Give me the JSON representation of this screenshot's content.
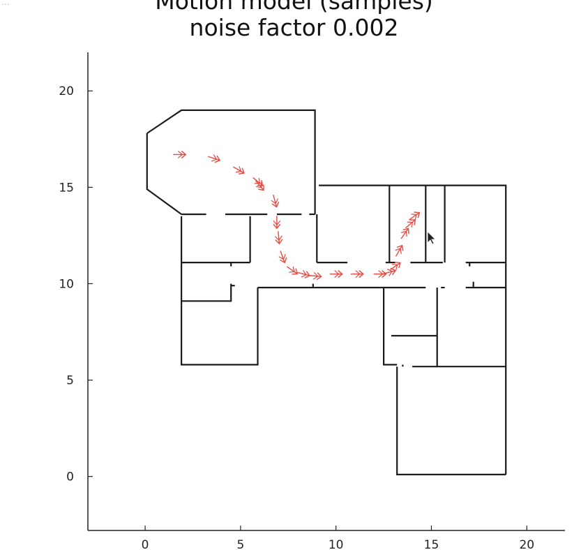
{
  "corner_mark": "...",
  "chart_data": {
    "type": "map",
    "title_lines": [
      "Motion model (samples)",
      "noise factor 0.002"
    ],
    "xlim": [
      -3,
      22
    ],
    "ylim": [
      -2.8,
      22
    ],
    "xticks": [
      0,
      5,
      10,
      15,
      20
    ],
    "yticks": [
      0,
      5,
      10,
      15,
      20
    ],
    "grid": false,
    "line_color": "#1a1a1a",
    "sample_color": "#e8473f",
    "walls": [
      [
        [
          0.1,
          17.8
        ],
        [
          1.9,
          19.0
        ],
        [
          8.9,
          19.0
        ],
        [
          8.9,
          13.6
        ]
      ],
      [
        [
          0.1,
          17.8
        ],
        [
          0.1,
          14.9
        ],
        [
          1.9,
          13.6
        ]
      ],
      [
        [
          1.9,
          13.6
        ],
        [
          3.2,
          13.6
        ]
      ],
      [
        [
          4.2,
          13.6
        ],
        [
          6.4,
          13.6
        ]
      ],
      [
        [
          6.9,
          13.6
        ],
        [
          8.2,
          13.6
        ]
      ],
      [
        [
          8.6,
          13.6
        ],
        [
          8.9,
          13.6
        ]
      ],
      [
        [
          1.9,
          13.5
        ],
        [
          1.9,
          5.8
        ],
        [
          5.9,
          5.8
        ],
        [
          5.9,
          9.8
        ]
      ],
      [
        [
          1.9,
          11.1
        ],
        [
          5.5,
          11.1
        ]
      ],
      [
        [
          5.5,
          13.5
        ],
        [
          5.5,
          11.1
        ]
      ],
      [
        [
          4.5,
          11.1
        ],
        [
          4.5,
          10.9
        ]
      ],
      [
        [
          1.9,
          9.1
        ],
        [
          4.5,
          9.1
        ],
        [
          4.5,
          10.0
        ]
      ],
      [
        [
          4.5,
          9.9
        ],
        [
          4.7,
          9.9
        ]
      ],
      [
        [
          5.9,
          9.8
        ],
        [
          14.7,
          9.8
        ]
      ],
      [
        [
          8.8,
          9.8
        ],
        [
          8.8,
          10.0
        ]
      ],
      [
        [
          9.0,
          13.6
        ],
        [
          9.0,
          11.1
        ]
      ],
      [
        [
          9.0,
          11.1
        ],
        [
          10.6,
          11.1
        ]
      ],
      [
        [
          9.1,
          15.1
        ],
        [
          18.9,
          15.1
        ],
        [
          18.9,
          9.8
        ]
      ],
      [
        [
          12.6,
          11.1
        ],
        [
          13.1,
          11.1
        ]
      ],
      [
        [
          12.8,
          15.1
        ],
        [
          12.8,
          11.1
        ]
      ],
      [
        [
          14.7,
          15.1
        ],
        [
          14.7,
          11.1
        ]
      ],
      [
        [
          13.9,
          11.1
        ],
        [
          15.6,
          11.1
        ]
      ],
      [
        [
          15.7,
          15.1
        ],
        [
          15.7,
          11.1
        ]
      ],
      [
        [
          16.8,
          11.1
        ],
        [
          18.9,
          11.1
        ]
      ],
      [
        [
          17.0,
          11.1
        ],
        [
          17.0,
          10.9
        ]
      ],
      [
        [
          15.5,
          9.8
        ],
        [
          15.7,
          9.8
        ]
      ],
      [
        [
          16.8,
          9.8
        ],
        [
          18.9,
          9.8
        ]
      ],
      [
        [
          17.2,
          9.8
        ],
        [
          17.2,
          10.1
        ]
      ],
      [
        [
          12.5,
          9.8
        ],
        [
          12.5,
          5.8
        ],
        [
          13.2,
          5.8
        ]
      ],
      [
        [
          15.3,
          9.8
        ],
        [
          15.3,
          5.7
        ]
      ],
      [
        [
          12.9,
          7.3
        ],
        [
          15.3,
          7.3
        ]
      ],
      [
        [
          14.0,
          5.7
        ],
        [
          18.9,
          5.7
        ]
      ],
      [
        [
          18.9,
          9.8
        ],
        [
          18.9,
          0.1
        ]
      ],
      [
        [
          13.2,
          5.7
        ],
        [
          13.2,
          0.1
        ],
        [
          18.9,
          0.1
        ]
      ],
      [
        [
          13.5,
          5.7
        ],
        [
          13.5,
          5.8
        ]
      ]
    ],
    "samples": [
      {
        "x": 1.8,
        "y": 16.7,
        "angle": 0
      },
      {
        "x": 3.6,
        "y": 16.5,
        "angle": -18
      },
      {
        "x": 4.9,
        "y": 15.9,
        "angle": -30
      },
      {
        "x": 5.9,
        "y": 15.3,
        "angle": -40
      },
      {
        "x": 6.0,
        "y": 15.1,
        "angle": -50
      },
      {
        "x": 6.8,
        "y": 14.3,
        "angle": -75
      },
      {
        "x": 6.9,
        "y": 13.2,
        "angle": -90
      },
      {
        "x": 7.0,
        "y": 12.4,
        "angle": -85
      },
      {
        "x": 7.2,
        "y": 11.4,
        "angle": -70
      },
      {
        "x": 7.7,
        "y": 10.7,
        "angle": -35
      },
      {
        "x": 8.3,
        "y": 10.5,
        "angle": -15
      },
      {
        "x": 8.9,
        "y": 10.4,
        "angle": -5
      },
      {
        "x": 10.0,
        "y": 10.5,
        "angle": 0
      },
      {
        "x": 11.1,
        "y": 10.5,
        "angle": 0
      },
      {
        "x": 12.3,
        "y": 10.5,
        "angle": 0
      },
      {
        "x": 12.8,
        "y": 10.6,
        "angle": 15
      },
      {
        "x": 13.1,
        "y": 10.9,
        "angle": 35
      },
      {
        "x": 13.3,
        "y": 11.7,
        "angle": 60
      },
      {
        "x": 13.6,
        "y": 12.6,
        "angle": 55
      },
      {
        "x": 13.9,
        "y": 13.1,
        "angle": 40
      },
      {
        "x": 14.1,
        "y": 13.5,
        "angle": 35
      }
    ]
  },
  "cursor": {
    "icon": "mouse-pointer-icon",
    "x": 14.8,
    "y": 12.7
  }
}
